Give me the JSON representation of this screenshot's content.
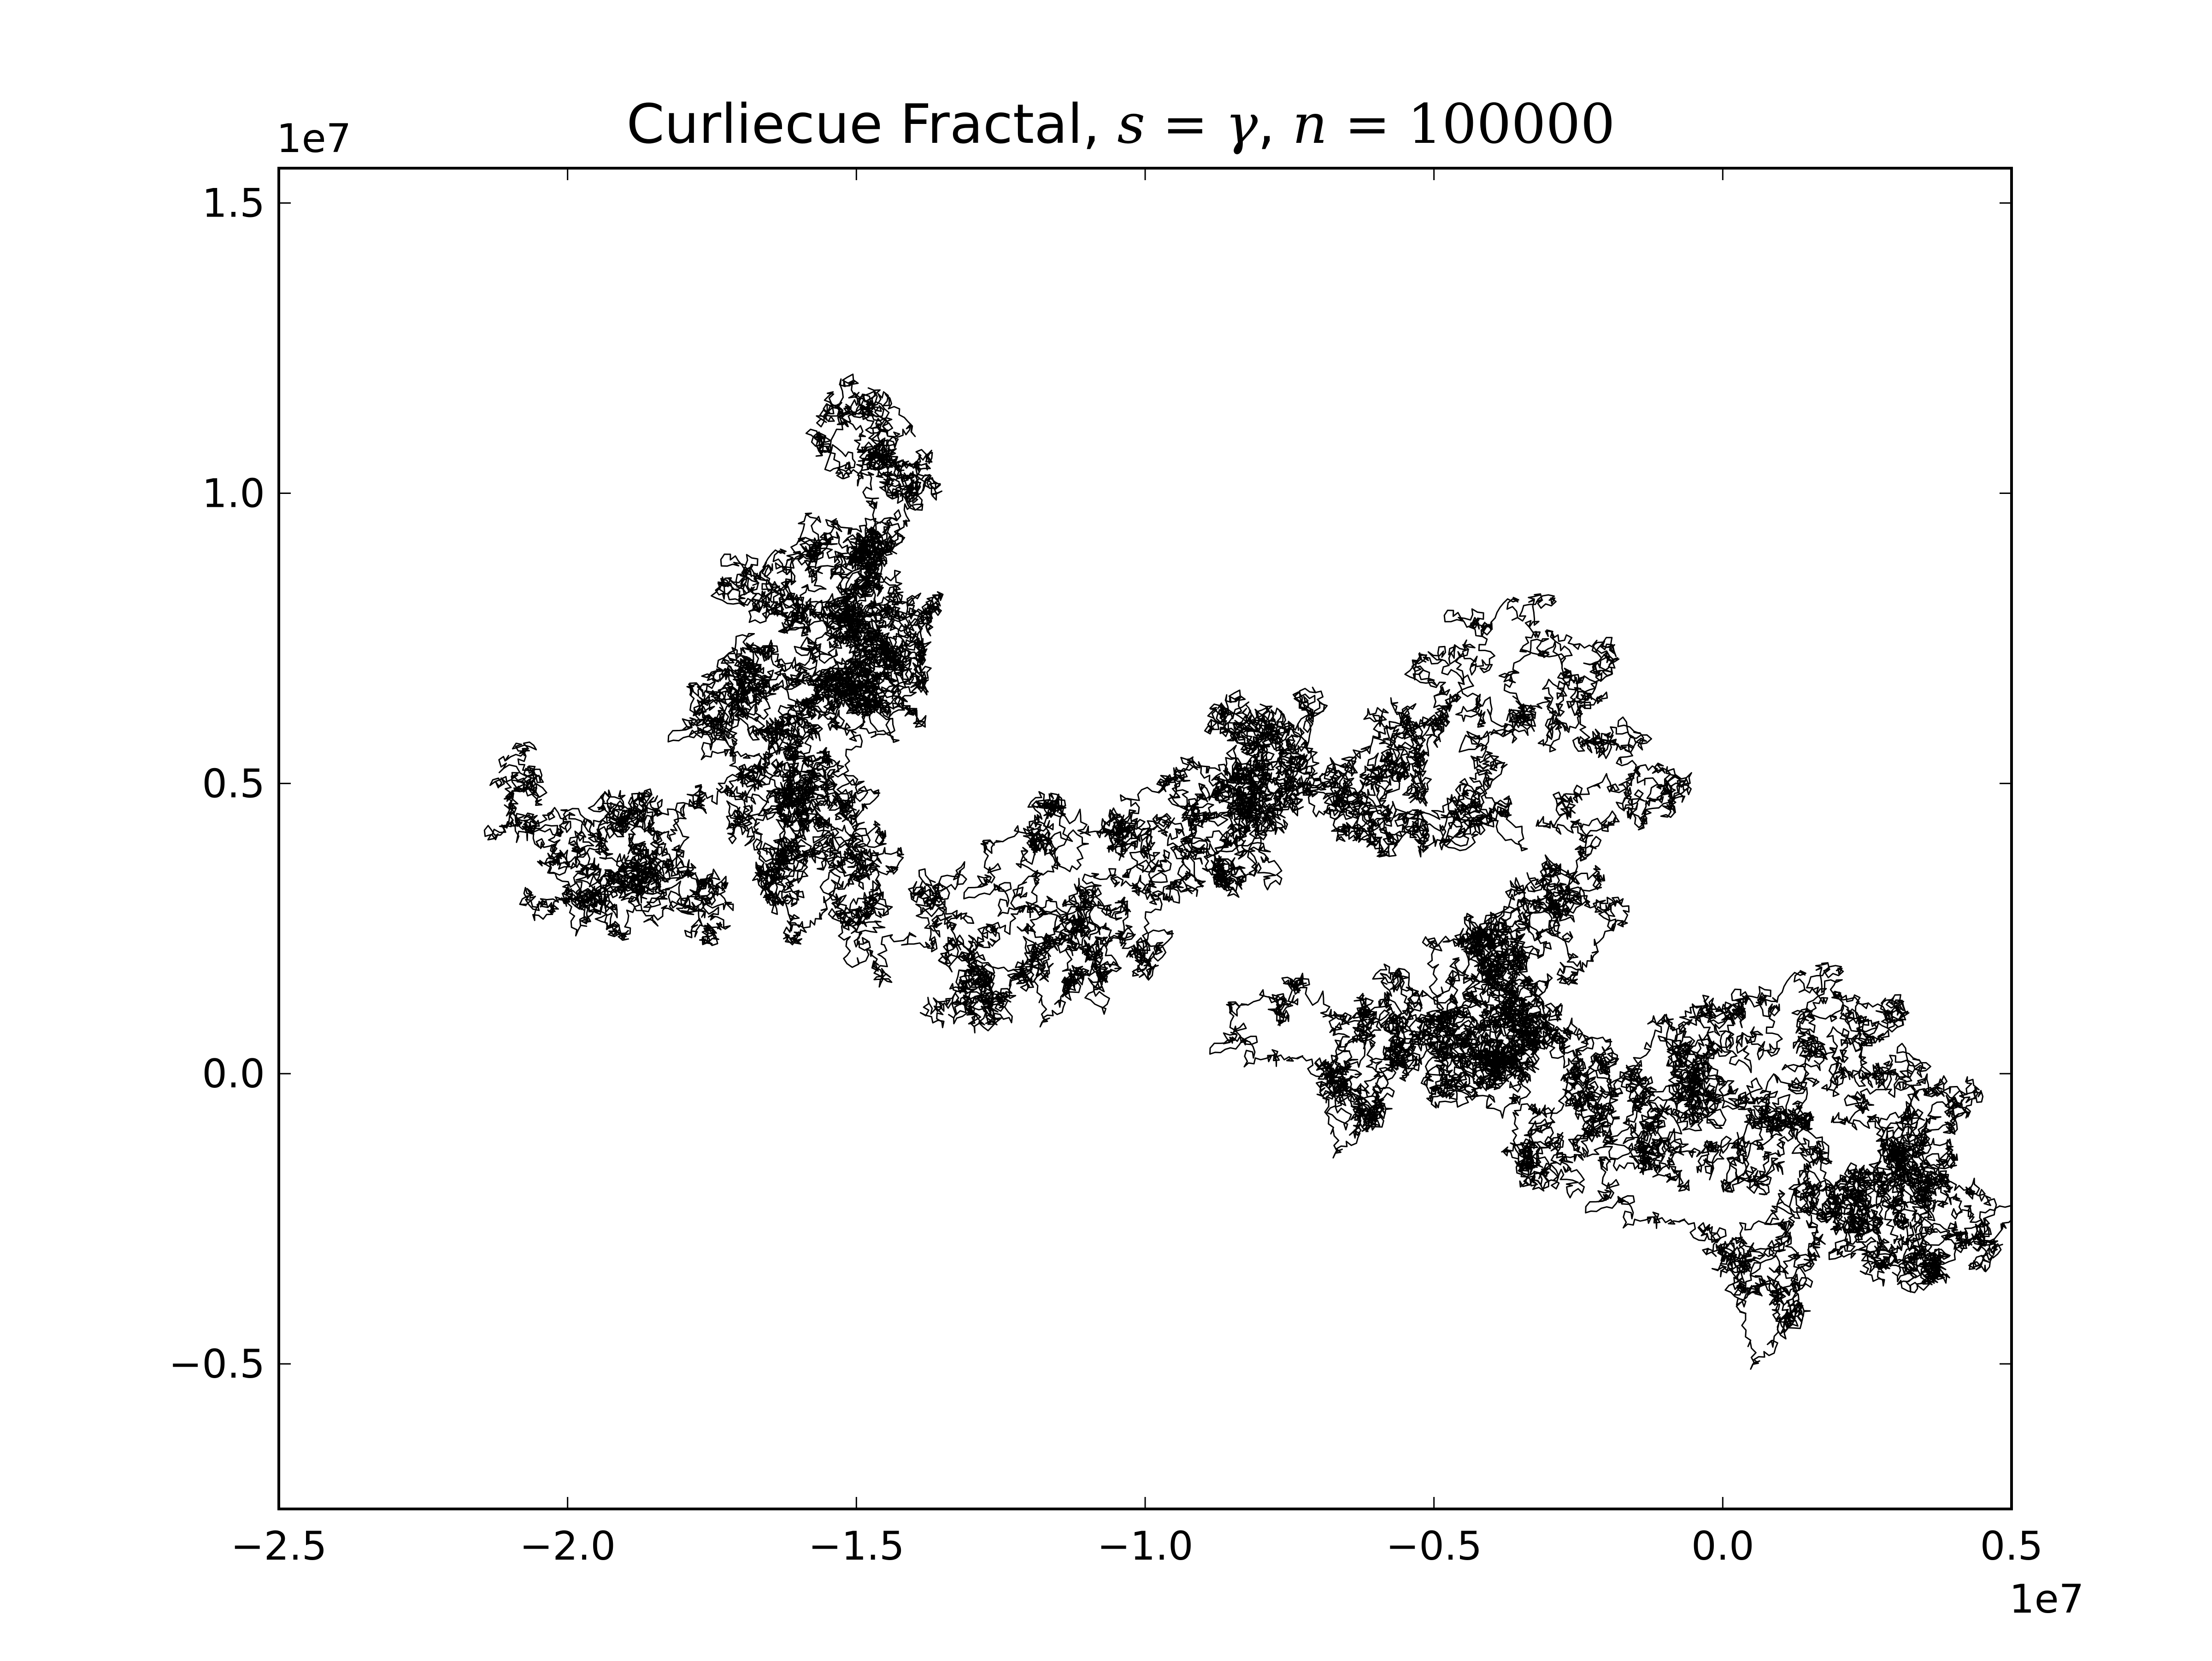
{
  "chart_data": {
    "type": "line",
    "title": {
      "prefix": "Curliecue Fractal, ",
      "s_var": "s",
      "eq1": " = ",
      "gamma": "γ",
      "sep": ", ",
      "n_var": "n",
      "eq2": " = ",
      "n_value": "100000"
    },
    "xlabel": "",
    "ylabel": "",
    "xlim": [
      -25000000,
      5000000
    ],
    "ylim": [
      -7500000,
      15600000
    ],
    "x_offset_label": "1e7",
    "y_offset_label": "1e7",
    "x_ticks": [
      {
        "value": -25000000,
        "label": "−2.5"
      },
      {
        "value": -20000000,
        "label": "−2.0"
      },
      {
        "value": -15000000,
        "label": "−1.5"
      },
      {
        "value": -10000000,
        "label": "−1.0"
      },
      {
        "value": -5000000,
        "label": "−0.5"
      },
      {
        "value": 0,
        "label": "0.0"
      },
      {
        "value": 5000000,
        "label": "0.5"
      }
    ],
    "y_ticks": [
      {
        "value": -5000000,
        "label": "−0.5"
      },
      {
        "value": 0,
        "label": "0.0"
      },
      {
        "value": 5000000,
        "label": "0.5"
      },
      {
        "value": 10000000,
        "label": "1.0"
      },
      {
        "value": 15000000,
        "label": "1.5"
      }
    ],
    "series": [
      {
        "color": "#000000",
        "path_waypoints_x": [
          -18500000.0,
          -20500000.0,
          -19500000.0,
          -18000000.0,
          -17000000.0,
          -15800000.0,
          -15200000.0,
          -16000000.0,
          -15500000.0,
          -14000000.0,
          -14700000.0,
          -15000000.0,
          -14500000.0,
          -16200000.0,
          -17500000.0,
          -17000000.0,
          -15500000.0,
          -14000000.0,
          -13000000.0,
          -12000000.0,
          -11000000.0,
          -10000000.0,
          -9500000.0,
          -8500000.0,
          -8000000.0,
          -7200000.0,
          -6200000.0,
          -5500000.0,
          -4500000.0,
          -3500000.0,
          -2500000.0,
          -3000000.0,
          -4000000.0,
          -4500000.0,
          -5000000.0,
          -6200000.0,
          -5500000.0,
          -4500000.0,
          -4000000.0,
          -3000000.0,
          -2000000.0,
          -1000000.0,
          0.0,
          800000.0,
          1500000.0,
          2200000.0,
          3000000.0,
          3700000.0,
          2800000.0,
          1500000.0,
          1000000.0,
          500000.0
        ],
        "path_waypoints_y": [
          4500000.0,
          4800000.0,
          3000000.0,
          3500000.0,
          6500000.0,
          5000000.0,
          6500000.0,
          9300000.0,
          10600000.0,
          10000000.0,
          8500000.0,
          7000000.0,
          6500000.0,
          6800000.0,
          6000000.0,
          5000000.0,
          4000000.0,
          2500000.0,
          2000000.0,
          3500000.0,
          3000000.0,
          3800000.0,
          5000000.0,
          5800000.0,
          4500000.0,
          6000000.0,
          5500000.0,
          4500000.0,
          5600000.0,
          6000000.0,
          4800000.0,
          3000000.0,
          2000000.0,
          1000000.0,
          500000.0,
          1200000.0,
          200000.0,
          600000.0,
          1500000.0,
          500000.0,
          0.0,
          500000.0,
          -200000.0,
          -500000.0,
          300000.0,
          -500000.0,
          -1500000.0,
          -1800000.0,
          -2300000.0,
          -2000000.0,
          -2500000.0,
          -2000000.0
        ]
      }
    ]
  }
}
